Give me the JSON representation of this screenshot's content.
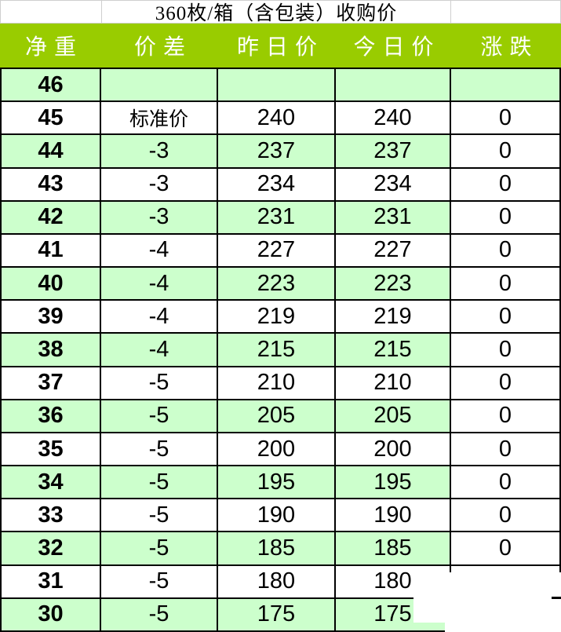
{
  "title": "360枚/箱（含包装）收购价",
  "columns": [
    {
      "key": "net",
      "label": "净重"
    },
    {
      "key": "diff",
      "label": "价差"
    },
    {
      "key": "yesterday",
      "label": "昨日价"
    },
    {
      "key": "today",
      "label": "今日价"
    },
    {
      "key": "change",
      "label": "涨跌"
    }
  ],
  "rows": [
    {
      "net": "46",
      "diff": "",
      "yesterday": "",
      "today": "",
      "change": ""
    },
    {
      "net": "45",
      "diff": "标准价",
      "yesterday": "240",
      "today": "240",
      "change": "0"
    },
    {
      "net": "44",
      "diff": "-3",
      "yesterday": "237",
      "today": "237",
      "change": "0"
    },
    {
      "net": "43",
      "diff": "-3",
      "yesterday": "234",
      "today": "234",
      "change": "0"
    },
    {
      "net": "42",
      "diff": "-3",
      "yesterday": "231",
      "today": "231",
      "change": "0"
    },
    {
      "net": "41",
      "diff": "-4",
      "yesterday": "227",
      "today": "227",
      "change": "0"
    },
    {
      "net": "40",
      "diff": "-4",
      "yesterday": "223",
      "today": "223",
      "change": "0"
    },
    {
      "net": "39",
      "diff": "-4",
      "yesterday": "219",
      "today": "219",
      "change": "0"
    },
    {
      "net": "38",
      "diff": "-4",
      "yesterday": "215",
      "today": "215",
      "change": "0"
    },
    {
      "net": "37",
      "diff": "-5",
      "yesterday": "210",
      "today": "210",
      "change": "0"
    },
    {
      "net": "36",
      "diff": "-5",
      "yesterday": "205",
      "today": "205",
      "change": "0"
    },
    {
      "net": "35",
      "diff": "-5",
      "yesterday": "200",
      "today": "200",
      "change": "0"
    },
    {
      "net": "34",
      "diff": "-5",
      "yesterday": "195",
      "today": "195",
      "change": "0"
    },
    {
      "net": "33",
      "diff": "-5",
      "yesterday": "190",
      "today": "190",
      "change": "0"
    },
    {
      "net": "32",
      "diff": "-5",
      "yesterday": "185",
      "today": "185",
      "change": "0"
    },
    {
      "net": "31",
      "diff": "-5",
      "yesterday": "180",
      "today": "180",
      "change": ""
    },
    {
      "net": "30",
      "diff": "-5",
      "yesterday": "175",
      "today": "175",
      "change": ""
    }
  ],
  "colors": {
    "header_bg": "#99cc00",
    "header_text": "#ffffff",
    "row_green": "#ccffcc",
    "row_white": "#ffffff",
    "grid_border": "#000000",
    "title_border": "#cfcfcf"
  }
}
